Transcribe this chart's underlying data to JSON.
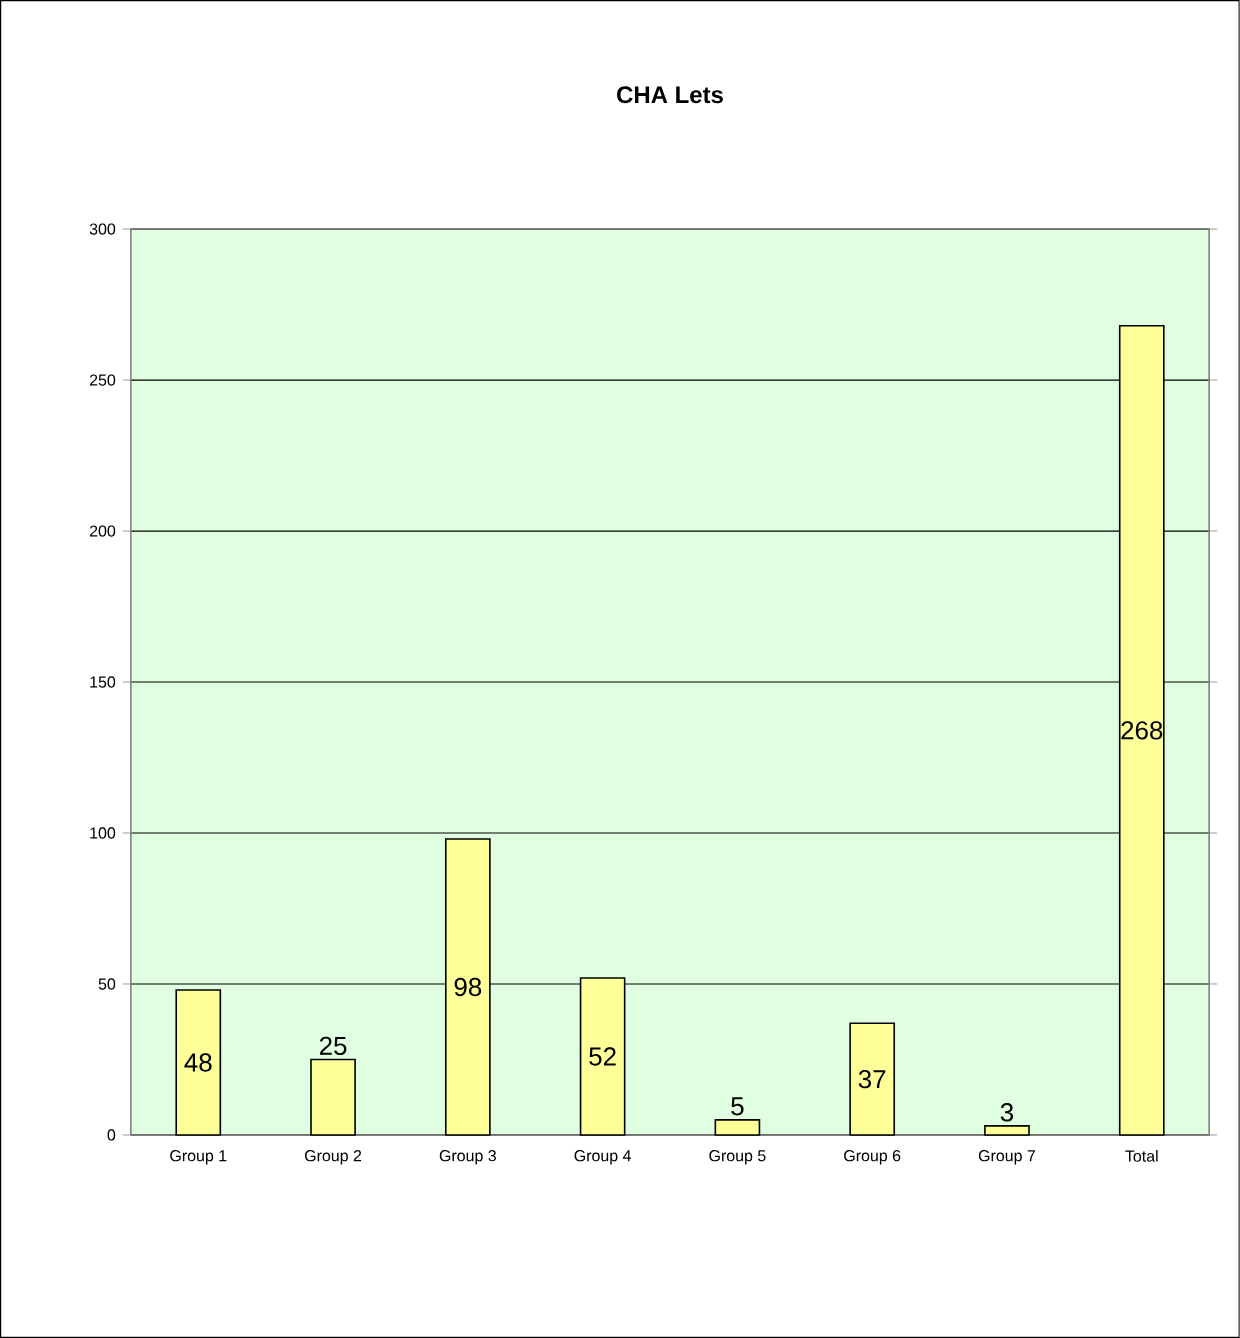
{
  "chart_data": {
    "type": "bar",
    "title": "CHA Lets",
    "categories": [
      "Group 1",
      "Group 2",
      "Group 3",
      "Group 4",
      "Group 5",
      "Group 6",
      "Group 7",
      "Total"
    ],
    "values": [
      48,
      25,
      98,
      52,
      5,
      37,
      3,
      268
    ],
    "color": "#ffff99",
    "ylim": [
      0,
      300
    ],
    "yticks": [
      0,
      50,
      100,
      150,
      200,
      250,
      300
    ],
    "grid": "y",
    "data_labels": true
  }
}
